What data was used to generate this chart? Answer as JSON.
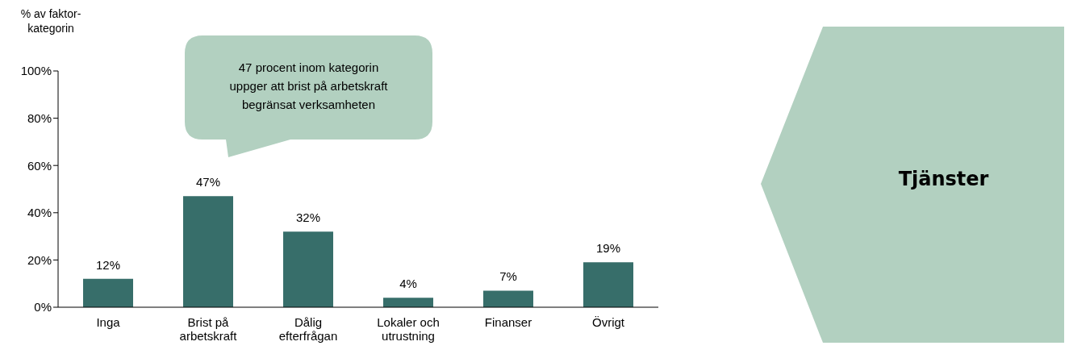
{
  "chart_data": {
    "type": "bar",
    "title": "Tjänster",
    "ylabel": "% av faktor-kategorin",
    "categories": [
      "Inga",
      "Brist på arbetskraft",
      "Dålig efterfrågan",
      "Lokaler och utrustning",
      "Finanser",
      "Övrigt"
    ],
    "values": [
      12,
      47,
      32,
      4,
      7,
      19
    ],
    "value_labels": [
      "12%",
      "47%",
      "32%",
      "4%",
      "7%",
      "19%"
    ],
    "color": "#376e6a",
    "ylim": [
      0,
      100
    ],
    "yticks": [
      {
        "value": 0,
        "label": "0%"
      },
      {
        "value": 20,
        "label": "20%"
      },
      {
        "value": 40,
        "label": "40%"
      },
      {
        "value": 60,
        "label": "60%"
      },
      {
        "value": 80,
        "label": "80%"
      },
      {
        "value": 100,
        "label": "100%"
      }
    ],
    "grid": false,
    "annotations": [
      "47 procent inom kategorin uppger att brist på arbetskraft begränsat verksamheten"
    ]
  }
}
